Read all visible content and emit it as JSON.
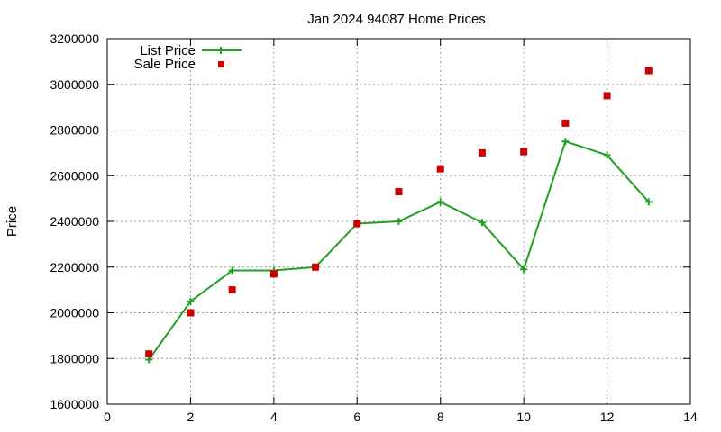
{
  "chart_data": {
    "type": "line",
    "title": "Jan 2024 94087 Home Prices",
    "xlabel": "",
    "ylabel": "Price",
    "xlim": [
      0,
      14
    ],
    "ylim": [
      1600000,
      3200000
    ],
    "x_ticks": [
      0,
      2,
      4,
      6,
      8,
      10,
      12,
      14
    ],
    "y_ticks": [
      1600000,
      1800000,
      2000000,
      2200000,
      2400000,
      2600000,
      2800000,
      3000000,
      3200000
    ],
    "grid": true,
    "legend_position": "top-left",
    "series": [
      {
        "name": "List Price",
        "style": "line-with-plus-markers",
        "color": "#22a022",
        "x": [
          1,
          2,
          3,
          4,
          5,
          6,
          7,
          8,
          9,
          10,
          11,
          12,
          13
        ],
        "values": [
          1795000,
          2050000,
          2185000,
          2185000,
          2200000,
          2390000,
          2400000,
          2485000,
          2395000,
          2190000,
          2750000,
          2690000,
          2485000
        ]
      },
      {
        "name": "Sale Price",
        "style": "square-markers",
        "color": "#cc0000",
        "x": [
          1,
          2,
          3,
          4,
          5,
          6,
          7,
          8,
          9,
          10,
          11,
          12,
          13
        ],
        "values": [
          1820000,
          2000000,
          2100000,
          2170000,
          2200000,
          2390000,
          2530000,
          2630000,
          2700000,
          2705000,
          2830000,
          2950000,
          3060000
        ]
      }
    ]
  }
}
